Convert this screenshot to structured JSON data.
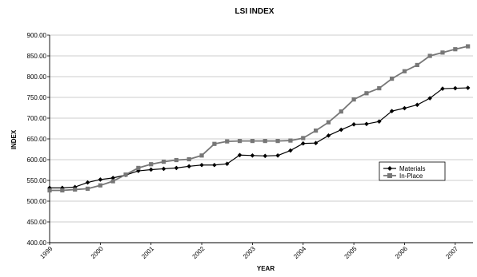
{
  "chart_data": {
    "type": "line",
    "title": "LSI INDEX",
    "xlabel": "YEAR",
    "ylabel": "INDEX",
    "xlim": [
      1999.0,
      2007.35
    ],
    "ylim": [
      400,
      900
    ],
    "y_tick_values": [
      400,
      450,
      500,
      550,
      600,
      650,
      700,
      750,
      800,
      850,
      900
    ],
    "y_tick_labels": [
      "400.00",
      "450.00",
      "500.00",
      "550.00",
      "600.00",
      "650.00",
      "700.00",
      "750.00",
      "800.00",
      "850.00",
      "900.00"
    ],
    "x_tick_values": [
      1999,
      2000,
      2001,
      2002,
      2003,
      2004,
      2005,
      2006,
      2007
    ],
    "x_tick_labels": [
      "1999",
      "2000",
      "2001",
      "2002",
      "2003",
      "2004",
      "2005",
      "2006",
      "2007"
    ],
    "grid": "horizontal",
    "legend_position": "right",
    "series": [
      {
        "name": "Materials",
        "color": "#000000",
        "marker": "diamond",
        "points": [
          [
            1999.0,
            532
          ],
          [
            1999.25,
            532
          ],
          [
            1999.5,
            534
          ],
          [
            1999.75,
            545
          ],
          [
            2000.0,
            552
          ],
          [
            2000.25,
            556
          ],
          [
            2000.5,
            563
          ],
          [
            2000.75,
            573
          ],
          [
            2001.0,
            576
          ],
          [
            2001.25,
            578
          ],
          [
            2001.5,
            580
          ],
          [
            2001.75,
            584
          ],
          [
            2002.0,
            587
          ],
          [
            2002.25,
            587
          ],
          [
            2002.5,
            590
          ],
          [
            2002.75,
            611
          ],
          [
            2003.0,
            610
          ],
          [
            2003.25,
            609
          ],
          [
            2003.5,
            610
          ],
          [
            2003.75,
            622
          ],
          [
            2004.0,
            639
          ],
          [
            2004.25,
            640
          ],
          [
            2004.5,
            658
          ],
          [
            2004.75,
            672
          ],
          [
            2005.0,
            685
          ],
          [
            2005.25,
            686
          ],
          [
            2005.5,
            692
          ],
          [
            2005.75,
            717
          ],
          [
            2006.0,
            724
          ],
          [
            2006.25,
            732
          ],
          [
            2006.5,
            748
          ],
          [
            2006.75,
            771
          ],
          [
            2007.0,
            772
          ],
          [
            2007.25,
            773
          ]
        ]
      },
      {
        "name": "In-Place",
        "color": "#777777",
        "marker": "square",
        "points": [
          [
            1999.0,
            526
          ],
          [
            1999.25,
            526
          ],
          [
            1999.5,
            528
          ],
          [
            1999.75,
            530
          ],
          [
            2000.0,
            538
          ],
          [
            2000.25,
            548
          ],
          [
            2000.5,
            564
          ],
          [
            2000.75,
            580
          ],
          [
            2001.0,
            589
          ],
          [
            2001.25,
            595
          ],
          [
            2001.5,
            599
          ],
          [
            2001.75,
            601
          ],
          [
            2002.0,
            610
          ],
          [
            2002.25,
            638
          ],
          [
            2002.5,
            644
          ],
          [
            2002.75,
            645
          ],
          [
            2003.0,
            645
          ],
          [
            2003.25,
            645
          ],
          [
            2003.5,
            645
          ],
          [
            2003.75,
            646
          ],
          [
            2004.0,
            652
          ],
          [
            2004.25,
            670
          ],
          [
            2004.5,
            690
          ],
          [
            2004.75,
            716
          ],
          [
            2005.0,
            745
          ],
          [
            2005.25,
            760
          ],
          [
            2005.5,
            772
          ],
          [
            2005.75,
            795
          ],
          [
            2006.0,
            813
          ],
          [
            2006.25,
            828
          ],
          [
            2006.5,
            850
          ],
          [
            2006.75,
            858
          ],
          [
            2007.0,
            866
          ],
          [
            2007.25,
            873
          ]
        ]
      }
    ]
  }
}
